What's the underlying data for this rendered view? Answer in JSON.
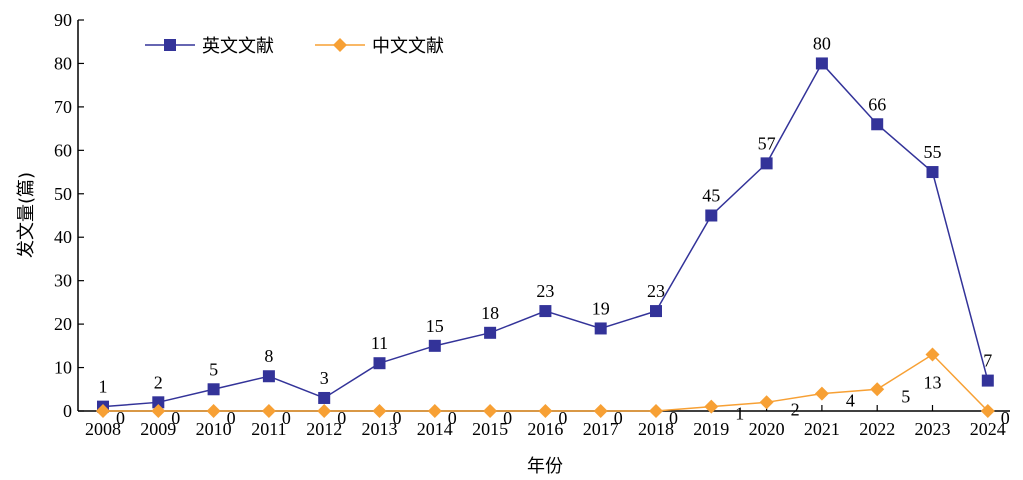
{
  "chart_data": {
    "type": "line",
    "x": [
      "2008",
      "2009",
      "2010",
      "2011",
      "2012",
      "2013",
      "2014",
      "2015",
      "2016",
      "2017",
      "2018",
      "2019",
      "2020",
      "2021",
      "2022",
      "2023",
      "2024"
    ],
    "series": [
      {
        "name": "英文文献",
        "color": "#333399",
        "marker": "square",
        "values": [
          1,
          2,
          5,
          8,
          3,
          11,
          15,
          18,
          23,
          19,
          23,
          45,
          57,
          80,
          66,
          55,
          7
        ]
      },
      {
        "name": "中文文献",
        "color": "#F7A034",
        "marker": "diamond",
        "values": [
          0,
          0,
          0,
          0,
          0,
          0,
          0,
          0,
          0,
          0,
          0,
          1,
          2,
          4,
          5,
          13,
          0
        ]
      }
    ],
    "xlabel": "年份",
    "ylabel": "发文量(篇)",
    "ylim": [
      0,
      90
    ],
    "yticks": [
      0,
      10,
      20,
      30,
      40,
      50,
      60,
      70,
      80,
      90
    ],
    "grid": false,
    "legend_position": "top-left"
  }
}
